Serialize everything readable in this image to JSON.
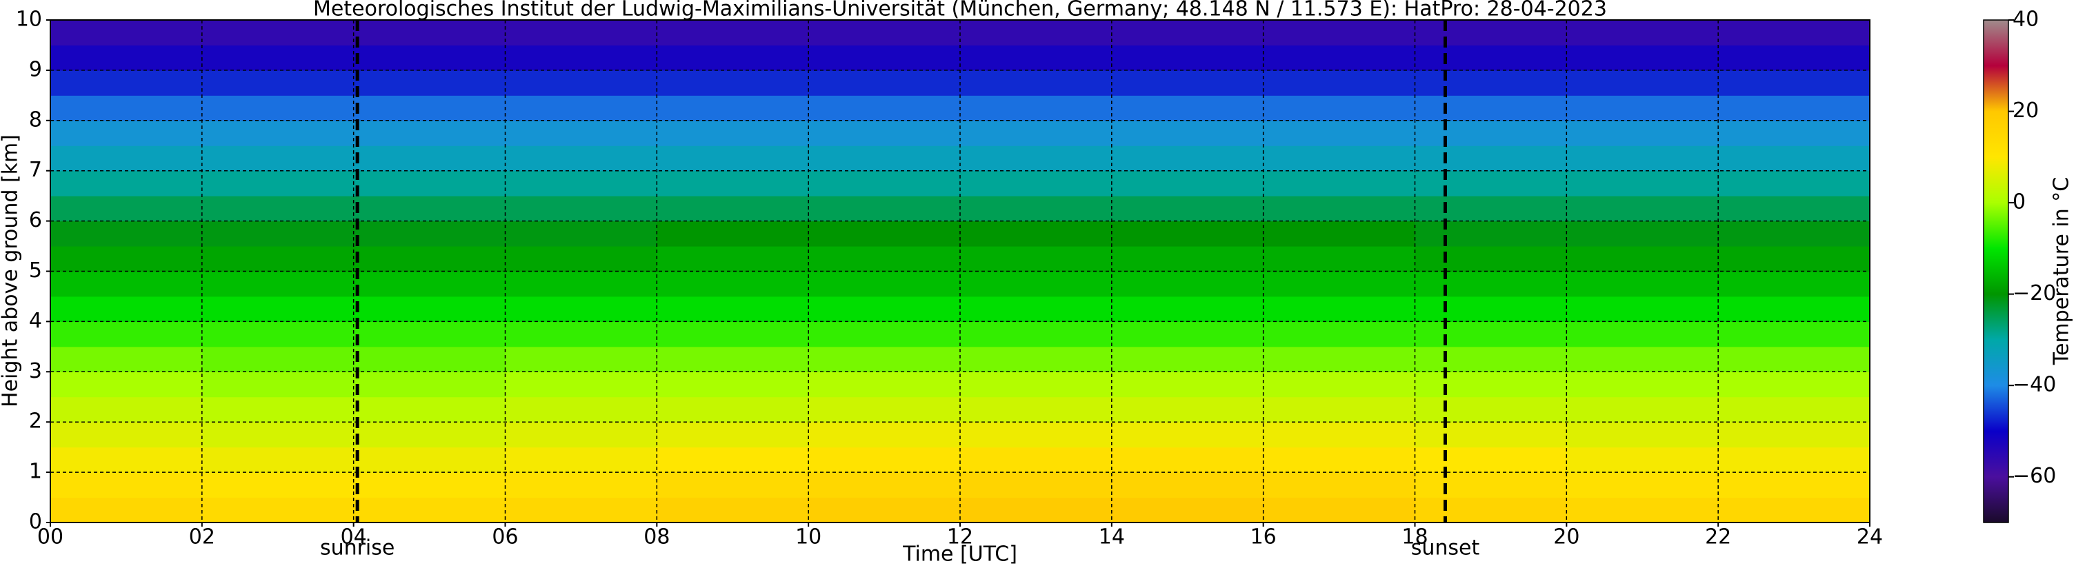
{
  "chart_data": {
    "type": "heatmap",
    "title": "Meteorologisches Institut der Ludwig-Maximilians-Universität (München, Germany; 48.148 N / 11.573 E):    HatPro: 28-04-2023",
    "xlabel": "Time [UTC]",
    "ylabel": "Height above ground [km]",
    "xlim": [
      0,
      24
    ],
    "ylim": [
      0,
      10
    ],
    "xticks": [
      {
        "value": 0,
        "label": "00"
      },
      {
        "value": 2,
        "label": "02"
      },
      {
        "value": 4,
        "label": "04"
      },
      {
        "value": 6,
        "label": "06"
      },
      {
        "value": 8,
        "label": "08"
      },
      {
        "value": 10,
        "label": "10"
      },
      {
        "value": 12,
        "label": "12"
      },
      {
        "value": 14,
        "label": "14"
      },
      {
        "value": 16,
        "label": "16"
      },
      {
        "value": 18,
        "label": "18"
      },
      {
        "value": 20,
        "label": "20"
      },
      {
        "value": 22,
        "label": "22"
      },
      {
        "value": 24,
        "label": "24"
      }
    ],
    "yticks": [
      0,
      1,
      2,
      3,
      4,
      5,
      6,
      7,
      8,
      9,
      10
    ],
    "grid": true,
    "x": [
      0,
      2,
      4,
      6,
      8,
      10,
      12,
      14,
      16,
      18,
      20,
      22
    ],
    "y": [
      0,
      0.5,
      1,
      1.5,
      2,
      2.5,
      3,
      3.5,
      4,
      4.5,
      5,
      5.5,
      6,
      6.5,
      7,
      7.5,
      8,
      8.5,
      9,
      9.5
    ],
    "values": [
      [
        15,
        14,
        14,
        15,
        17,
        18,
        19,
        19,
        18,
        16,
        15,
        15
      ],
      [
        12,
        11,
        11,
        12,
        14,
        15,
        16,
        16,
        15,
        13,
        12,
        12
      ],
      [
        9,
        8,
        8,
        9,
        10,
        11,
        12,
        12,
        11,
        10,
        9,
        9
      ],
      [
        6,
        5,
        5,
        6,
        7,
        8,
        8,
        8,
        8,
        7,
        6,
        6
      ],
      [
        3,
        2,
        2,
        3,
        3,
        4,
        4,
        4,
        4,
        3,
        3,
        3
      ],
      [
        0,
        -1,
        -1,
        0,
        0,
        1,
        1,
        1,
        1,
        0,
        0,
        0
      ],
      [
        -3,
        -4,
        -4,
        -3,
        -3,
        -3,
        -3,
        -3,
        -3,
        -3,
        -3,
        -3
      ],
      [
        -7,
        -7,
        -7,
        -7,
        -7,
        -7,
        -7,
        -7,
        -7,
        -7,
        -7,
        -7
      ],
      [
        -11,
        -11,
        -11,
        -11,
        -11,
        -11,
        -11,
        -11,
        -11,
        -11,
        -11,
        -11
      ],
      [
        -15,
        -15,
        -15,
        -15,
        -15,
        -15,
        -15,
        -15,
        -15,
        -15,
        -15,
        -15
      ],
      [
        -18,
        -18,
        -18,
        -18,
        -17,
        -17,
        -17,
        -17,
        -17,
        -18,
        -18,
        -18
      ],
      [
        -21,
        -21,
        -21,
        -21,
        -20,
        -20,
        -20,
        -20,
        -20,
        -21,
        -21,
        -21
      ],
      [
        -25,
        -25,
        -25,
        -25,
        -25,
        -25,
        -25,
        -25,
        -25,
        -25,
        -25,
        -25
      ],
      [
        -29,
        -29,
        -29,
        -29,
        -29,
        -29,
        -29,
        -29,
        -29,
        -29,
        -29,
        -29
      ],
      [
        -33,
        -33,
        -33,
        -33,
        -33,
        -33,
        -33,
        -33,
        -33,
        -33,
        -33,
        -33
      ],
      [
        -37,
        -37,
        -37,
        -37,
        -37,
        -37,
        -37,
        -37,
        -37,
        -37,
        -37,
        -37
      ],
      [
        -42,
        -42,
        -42,
        -42,
        -42,
        -42,
        -42,
        -42,
        -42,
        -42,
        -42,
        -42
      ],
      [
        -47,
        -47,
        -47,
        -47,
        -47,
        -47,
        -47,
        -47,
        -47,
        -47,
        -47,
        -47
      ],
      [
        -52,
        -52,
        -52,
        -52,
        -52,
        -52,
        -52,
        -52,
        -52,
        -52,
        -52,
        -52
      ],
      [
        -56,
        -56,
        -56,
        -56,
        -56,
        -56,
        -56,
        -56,
        -56,
        -56,
        -56,
        -56
      ]
    ],
    "annotations": [
      {
        "text": "sunrise",
        "x": 4.05
      },
      {
        "text": "sunset",
        "x": 18.4
      }
    ],
    "colorbar": {
      "label": "Temperature in °C",
      "ylim": [
        -70,
        40
      ],
      "yticks": [
        {
          "value": -60,
          "label": "−60"
        },
        {
          "value": -40,
          "label": "−40"
        },
        {
          "value": -20,
          "label": "−20"
        },
        0,
        20,
        40
      ],
      "colors": [
        "#1a0a2a",
        "#4b0f9e",
        "#0a00c8",
        "#1e8ce6",
        "#00a8a8",
        "#009600",
        "#00e600",
        "#aaff00",
        "#ffe600",
        "#ffc800",
        "#b4003c",
        "#a08c8c"
      ]
    }
  }
}
